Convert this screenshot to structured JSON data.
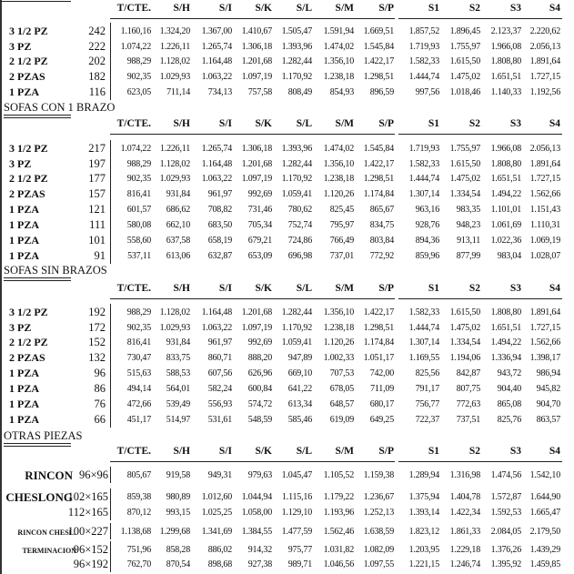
{
  "columns": [
    "T/CTE.",
    "S/H",
    "S/I",
    "S/K",
    "S/L",
    "S/M",
    "S/P",
    "S1",
    "S2",
    "S3",
    "S4"
  ],
  "sections": [
    {
      "title": "",
      "rows": [
        {
          "label": "3 1/2 PZ",
          "code": "242",
          "values": [
            "1.160,16",
            "1.324,20",
            "1.367,00",
            "1.410,67",
            "1.505,47",
            "1.591,94",
            "1.669,51",
            "1.857,52",
            "1.896,45",
            "2.123,37",
            "2.220,62"
          ]
        },
        {
          "label": "3 PZ",
          "code": "222",
          "values": [
            "1.074,22",
            "1.226,11",
            "1.265,74",
            "1.306,18",
            "1.393,96",
            "1.474,02",
            "1.545,84",
            "1.719,93",
            "1.755,97",
            "1.966,08",
            "2.056,13"
          ]
        },
        {
          "label": "2 1/2 PZ",
          "code": "202",
          "values": [
            "988,29",
            "1.128,02",
            "1.164,48",
            "1.201,68",
            "1.282,44",
            "1.356,10",
            "1.422,17",
            "1.582,33",
            "1.615,50",
            "1.808,80",
            "1.891,64"
          ]
        },
        {
          "label": "2 PZAS",
          "code": "182",
          "values": [
            "902,35",
            "1.029,93",
            "1.063,22",
            "1.097,19",
            "1.170,92",
            "1.238,18",
            "1.298,51",
            "1.444,74",
            "1.475,02",
            "1.651,51",
            "1.727,15"
          ]
        },
        {
          "label": "1 PZA",
          "code": "116",
          "values": [
            "623,05",
            "711,14",
            "734,13",
            "757,58",
            "808,49",
            "854,93",
            "896,59",
            "997,56",
            "1.018,46",
            "1.140,33",
            "1.192,56"
          ]
        }
      ]
    },
    {
      "title": "SOFAS CON 1 BRAZO",
      "rows": [
        {
          "label": "3 1/2 PZ",
          "code": "217",
          "values": [
            "1.074,22",
            "1.226,11",
            "1.265,74",
            "1.306,18",
            "1.393,96",
            "1.474,02",
            "1.545,84",
            "1.719,93",
            "1.755,97",
            "1.966,08",
            "2.056,13"
          ]
        },
        {
          "label": "3 PZ",
          "code": "197",
          "values": [
            "988,29",
            "1.128,02",
            "1.164,48",
            "1.201,68",
            "1.282,44",
            "1.356,10",
            "1.422,17",
            "1.582,33",
            "1.615,50",
            "1.808,80",
            "1.891,64"
          ]
        },
        {
          "label": "2 1/2 PZ",
          "code": "177",
          "values": [
            "902,35",
            "1.029,93",
            "1.063,22",
            "1.097,19",
            "1.170,92",
            "1.238,18",
            "1.298,51",
            "1.444,74",
            "1.475,02",
            "1.651,51",
            "1.727,15"
          ]
        },
        {
          "label": "2 PZAS",
          "code": "157",
          "values": [
            "816,41",
            "931,84",
            "961,97",
            "992,69",
            "1.059,41",
            "1.120,26",
            "1.174,84",
            "1.307,14",
            "1.334,54",
            "1.494,22",
            "1.562,66"
          ]
        },
        {
          "label": "1 PZA",
          "code": "121",
          "values": [
            "601,57",
            "686,62",
            "708,82",
            "731,46",
            "780,62",
            "825,45",
            "865,67",
            "963,16",
            "983,35",
            "1.101,01",
            "1.151,43"
          ]
        },
        {
          "label": "1 PZA",
          "code": "111",
          "values": [
            "580,08",
            "662,10",
            "683,50",
            "705,34",
            "752,74",
            "795,97",
            "834,75",
            "928,76",
            "948,23",
            "1.061,69",
            "1.110,31"
          ]
        },
        {
          "label": "1 PZA",
          "code": "101",
          "values": [
            "558,60",
            "637,58",
            "658,19",
            "679,21",
            "724,86",
            "766,49",
            "803,84",
            "894,36",
            "913,11",
            "1.022,36",
            "1.069,19"
          ]
        },
        {
          "label": "1 PZA",
          "code": "91",
          "values": [
            "537,11",
            "613,06",
            "632,87",
            "653,09",
            "696,98",
            "737,01",
            "772,92",
            "859,96",
            "877,99",
            "983,04",
            "1.028,07"
          ]
        }
      ]
    },
    {
      "title": "SOFAS SIN BRAZOS",
      "rows": [
        {
          "label": "3 1/2 PZ",
          "code": "192",
          "values": [
            "988,29",
            "1.128,02",
            "1.164,48",
            "1.201,68",
            "1.282,44",
            "1.356,10",
            "1.422,17",
            "1.582,33",
            "1.615,50",
            "1.808,80",
            "1.891,64"
          ]
        },
        {
          "label": "3 PZ",
          "code": "172",
          "values": [
            "902,35",
            "1.029,93",
            "1.063,22",
            "1.097,19",
            "1.170,92",
            "1.238,18",
            "1.298,51",
            "1.444,74",
            "1.475,02",
            "1.651,51",
            "1.727,15"
          ]
        },
        {
          "label": "2 1/2 PZ",
          "code": "152",
          "values": [
            "816,41",
            "931,84",
            "961,97",
            "992,69",
            "1.059,41",
            "1.120,26",
            "1.174,84",
            "1.307,14",
            "1.334,54",
            "1.494,22",
            "1.562,66"
          ]
        },
        {
          "label": "2 PZAS",
          "code": "132",
          "values": [
            "730,47",
            "833,75",
            "860,71",
            "888,20",
            "947,89",
            "1.002,33",
            "1.051,17",
            "1.169,55",
            "1.194,06",
            "1.336,94",
            "1.398,17"
          ]
        },
        {
          "label": "1 PZA",
          "code": "96",
          "values": [
            "515,63",
            "588,53",
            "607,56",
            "626,96",
            "669,10",
            "707,53",
            "742,00",
            "825,56",
            "842,87",
            "943,72",
            "986,94"
          ]
        },
        {
          "label": "1 PZA",
          "code": "86",
          "values": [
            "494,14",
            "564,01",
            "582,24",
            "600,84",
            "641,22",
            "678,05",
            "711,09",
            "791,17",
            "807,75",
            "904,40",
            "945,82"
          ]
        },
        {
          "label": "1 PZA",
          "code": "76",
          "values": [
            "472,66",
            "539,49",
            "556,93",
            "574,72",
            "613,34",
            "648,57",
            "680,17",
            "756,77",
            "772,63",
            "865,08",
            "904,70"
          ]
        },
        {
          "label": "1 PZA",
          "code": "66",
          "values": [
            "451,17",
            "514,97",
            "531,61",
            "548,59",
            "585,46",
            "619,09",
            "649,25",
            "722,37",
            "737,51",
            "825,76",
            "863,57"
          ]
        }
      ]
    },
    {
      "title": "OTRAS PIEZAS",
      "rows": [
        {
          "label": "RINCON",
          "code": "96×96",
          "values": [
            "805,67",
            "919,58",
            "949,31",
            "979,63",
            "1.045,47",
            "1.105,52",
            "1.159,38",
            "1.289,94",
            "1.316,98",
            "1.474,56",
            "1.542,10"
          ]
        },
        {
          "label": "CHESLONG",
          "code": "102×165",
          "values": [
            "859,38",
            "980,89",
            "1.012,60",
            "1.044,94",
            "1.115,16",
            "1.179,22",
            "1.236,67",
            "1.375,94",
            "1.404,78",
            "1.572,87",
            "1.644,90"
          ]
        },
        {
          "label": "",
          "code": "112×165",
          "values": [
            "870,12",
            "993,15",
            "1.025,25",
            "1.058,00",
            "1.129,10",
            "1.193,96",
            "1.252,13",
            "1.393,14",
            "1.422,34",
            "1.592,53",
            "1.665,47"
          ]
        },
        {
          "label": "RINCON CHESL.",
          "code": "100×227",
          "values": [
            "1.138,68",
            "1.299,68",
            "1.341,69",
            "1.384,55",
            "1.477,59",
            "1.562,46",
            "1.638,59",
            "1.823,12",
            "1.861,33",
            "2.084,05",
            "2.179,50"
          ]
        },
        {
          "label": "TERMINACION",
          "code": "96×152",
          "values": [
            "751,96",
            "858,28",
            "886,02",
            "914,32",
            "975,77",
            "1.031,82",
            "1.082,09",
            "1.203,95",
            "1.229,18",
            "1.376,26",
            "1.439,29"
          ]
        },
        {
          "label": "",
          "code": "96×192",
          "values": [
            "762,70",
            "870,54",
            "898,68",
            "927,38",
            "989,71",
            "1.046,56",
            "1.097,55",
            "1.221,15",
            "1.246,74",
            "1.395,92",
            "1.459,85"
          ]
        }
      ]
    }
  ]
}
